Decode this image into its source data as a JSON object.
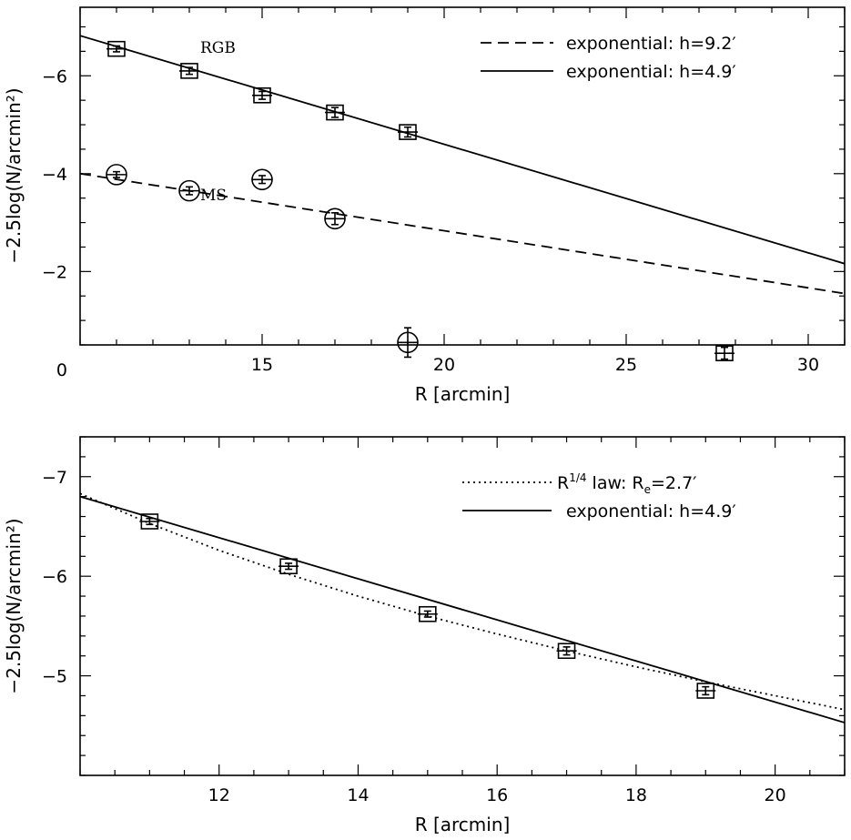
{
  "chart_data": [
    {
      "type": "scatter",
      "xlabel": "R [arcmin]",
      "ylabel": "−2.5log(N/arcmin²)",
      "xlim": [
        10,
        31
      ],
      "ylim": [
        -0.5,
        -7.4
      ],
      "y_inverted": true,
      "xticks": [
        15,
        20,
        25,
        30
      ],
      "yticks": [
        -6,
        -4,
        -2,
        0
      ],
      "xtick_labels": [
        "15",
        "20",
        "25",
        "30"
      ],
      "ytick_labels": [
        "−6",
        "−4",
        "−2",
        "0"
      ],
      "legend_position": "top-right",
      "series": [
        {
          "name": "RGB",
          "marker": "square",
          "x": [
            11,
            13,
            15,
            17,
            19,
            27.7
          ],
          "y": [
            -6.55,
            -6.1,
            -5.6,
            -5.25,
            -4.85,
            -0.33
          ],
          "yerr": [
            0.06,
            0.07,
            0.08,
            0.1,
            0.1,
            0.12
          ]
        },
        {
          "name": "MS",
          "marker": "circle",
          "x": [
            11,
            13,
            15,
            17,
            19
          ],
          "y": [
            -3.98,
            -3.65,
            -3.88,
            -3.08,
            -0.55
          ],
          "yerr": [
            0.06,
            0.08,
            0.08,
            0.12,
            0.3
          ]
        }
      ],
      "lines": [
        {
          "name": "exponential: h=9.2′",
          "style": "dashed",
          "x": [
            10,
            31
          ],
          "y": [
            -4.0,
            -1.55
          ]
        },
        {
          "name": "exponential: h=4.9′",
          "style": "solid",
          "x": [
            10,
            31
          ],
          "y": [
            -6.82,
            -2.16
          ]
        }
      ],
      "annotations": [
        {
          "text": "RGB",
          "x": 12.35,
          "y": -6.5
        },
        {
          "text": "MS",
          "x": 12.35,
          "y": -3.1
        }
      ]
    },
    {
      "type": "scatter",
      "xlabel": "R [arcmin]",
      "ylabel": "−2.5log(N/arcmin²)",
      "xlim": [
        10,
        21
      ],
      "ylim": [
        -4,
        -7.4
      ],
      "y_inverted": true,
      "xticks": [
        12,
        14,
        16,
        18,
        20
      ],
      "yticks": [
        -7,
        -6,
        -5
      ],
      "xtick_labels": [
        "12",
        "14",
        "16",
        "18",
        "20"
      ],
      "ytick_labels": [
        "−7",
        "−6",
        "−5"
      ],
      "legend_position": "top-right",
      "series": [
        {
          "name": "RGB",
          "marker": "square",
          "x": [
            11,
            13,
            15,
            17,
            19
          ],
          "y": [
            -6.55,
            -6.1,
            -5.62,
            -5.25,
            -4.85
          ],
          "yerr": [
            0.03,
            0.03,
            0.03,
            0.04,
            0.04
          ]
        }
      ],
      "lines": [
        {
          "name_parts": {
            "pre": "R",
            "sup": "1/4",
            "mid": " law: R",
            "sub": "e",
            "post": "=2.7′"
          },
          "style": "dotted",
          "x": [
            10,
            11,
            12,
            13,
            14,
            15,
            16,
            17,
            18,
            19,
            20,
            21
          ],
          "y": [
            -6.83,
            -6.53,
            -6.26,
            -6.02,
            -5.8,
            -5.6,
            -5.42,
            -5.25,
            -5.09,
            -4.94,
            -4.8,
            -4.66
          ]
        },
        {
          "name": "exponential: h=4.9′",
          "style": "solid",
          "x": [
            10,
            21
          ],
          "y": [
            -6.8,
            -4.53
          ]
        }
      ]
    }
  ]
}
